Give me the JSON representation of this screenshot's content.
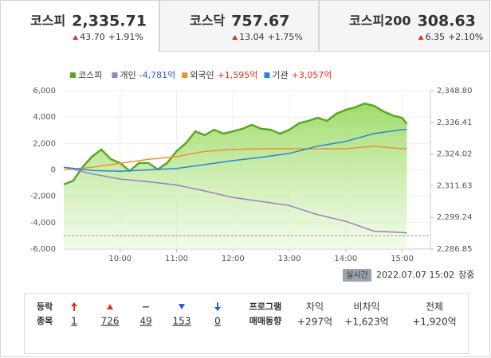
{
  "tabs": [
    {
      "name": "코스피",
      "value": "2,335.71",
      "change": "43.70",
      "rate": "+1.91%",
      "active": true
    },
    {
      "name": "코스닥",
      "value": "757.67",
      "change": "13.04",
      "rate": "+1.75%",
      "active": false
    },
    {
      "name": "코스피200",
      "value": "308.63",
      "change": "6.35",
      "rate": "+2.10%",
      "active": false
    }
  ],
  "chart_data": {
    "type": "line",
    "xlim": [
      540,
      930
    ],
    "xticks": [
      {
        "value": 600,
        "label": "10:00"
      },
      {
        "value": 660,
        "label": "11:00"
      },
      {
        "value": 720,
        "label": "12:00"
      },
      {
        "value": 780,
        "label": "13:00"
      },
      {
        "value": 840,
        "label": "14:00"
      },
      {
        "value": 900,
        "label": "15:00"
      }
    ],
    "ylim": [
      -6000,
      6000
    ],
    "yticks": [
      {
        "value": -6000,
        "label": "-6,000"
      },
      {
        "value": -4000,
        "label": "-4,000"
      },
      {
        "value": -2000,
        "label": "-2,000"
      },
      0,
      {
        "value": 2000,
        "label": "2,000"
      },
      {
        "value": 4000,
        "label": "4,000"
      },
      {
        "value": 6000,
        "label": "6,000"
      }
    ],
    "y2lim": [
      2286.85,
      2348.8
    ],
    "y2ticks": [
      {
        "value": 2286.85,
        "label": "2,286.85"
      },
      {
        "value": 2299.24,
        "label": "2,299.24"
      },
      {
        "value": 2311.63,
        "label": "2,311.63"
      },
      {
        "value": 2324.02,
        "label": "2,324.02"
      },
      {
        "value": 2336.41,
        "label": "2,336.41"
      },
      {
        "value": 2348.8,
        "label": "2,348.80"
      }
    ],
    "grid": true,
    "reference_line": {
      "value": 2292.01,
      "axis": "y2",
      "color": "#999999"
    },
    "series": [
      {
        "name": "코스피",
        "color": "#5aa626",
        "axis": "y2",
        "area": true,
        "x": [
          540,
          550,
          560,
          570,
          580,
          590,
          600,
          610,
          620,
          630,
          640,
          650,
          660,
          670,
          680,
          690,
          700,
          710,
          720,
          730,
          740,
          750,
          760,
          770,
          780,
          790,
          800,
          810,
          820,
          830,
          840,
          850,
          860,
          870,
          880,
          890,
          900,
          905
        ],
        "values": [
          2312.1,
          2313.6,
          2318.9,
          2323.0,
          2325.8,
          2322.0,
          2320.5,
          2317.4,
          2320.5,
          2320.5,
          2318.0,
          2320.5,
          2325.1,
          2328.3,
          2332.9,
          2331.4,
          2333.5,
          2332.0,
          2332.9,
          2333.9,
          2335.4,
          2333.9,
          2333.5,
          2332.0,
          2333.5,
          2336.0,
          2337.0,
          2338.2,
          2337.0,
          2339.8,
          2341.3,
          2342.3,
          2343.8,
          2342.9,
          2340.7,
          2339.1,
          2338.2,
          2335.71
        ]
      },
      {
        "name": "개인",
        "legend_value": "-4,781억",
        "legend_value_color": "#2d5bd2",
        "color": "#9b7fbd",
        "x": [
          540,
          570,
          600,
          630,
          660,
          690,
          720,
          750,
          780,
          810,
          840,
          870,
          900,
          905
        ],
        "values": [
          200,
          -300,
          -700,
          -900,
          -1150,
          -1600,
          -2100,
          -2400,
          -2700,
          -3400,
          -3900,
          -4650,
          -4750,
          -4781
        ]
      },
      {
        "name": "외국인",
        "legend_value": "+1,595억",
        "legend_value_color": "#e0301e",
        "color": "#f0912a",
        "x": [
          540,
          570,
          600,
          630,
          660,
          690,
          720,
          750,
          780,
          810,
          840,
          870,
          900,
          905
        ],
        "values": [
          0,
          200,
          500,
          800,
          1000,
          1400,
          1550,
          1600,
          1600,
          1600,
          1600,
          1800,
          1600,
          1595
        ]
      },
      {
        "name": "기관",
        "legend_value": "+3,057억",
        "legend_value_color": "#e0301e",
        "color": "#2a86d6",
        "x": [
          540,
          570,
          600,
          630,
          660,
          690,
          720,
          750,
          780,
          810,
          840,
          870,
          900,
          905
        ],
        "values": [
          200,
          -50,
          -100,
          0,
          100,
          400,
          700,
          950,
          1250,
          1800,
          2150,
          2750,
          3050,
          3057
        ]
      }
    ]
  },
  "status": {
    "badge": "실시간",
    "datetime": "2022.07.07 15:02",
    "state": "장중"
  },
  "breadth": {
    "label": [
      "등락",
      "종목"
    ],
    "items": [
      {
        "value": "1",
        "icon": "upper",
        "color": "#e0301e"
      },
      {
        "value": "726",
        "icon": "up",
        "color": "#e0301e"
      },
      {
        "value": "49",
        "icon": "flat",
        "color": "#555555"
      },
      {
        "value": "153",
        "icon": "down",
        "color": "#2d5bd2"
      },
      {
        "value": "0",
        "icon": "lower",
        "color": "#2d5bd2"
      }
    ]
  },
  "program": {
    "title": [
      "프로그램",
      "매매동향"
    ],
    "items": [
      {
        "label": "차익",
        "value": "+297억"
      },
      {
        "label": "비차익",
        "value": "+1,623억"
      },
      {
        "label": "전체",
        "value": "+1,920억"
      }
    ]
  }
}
